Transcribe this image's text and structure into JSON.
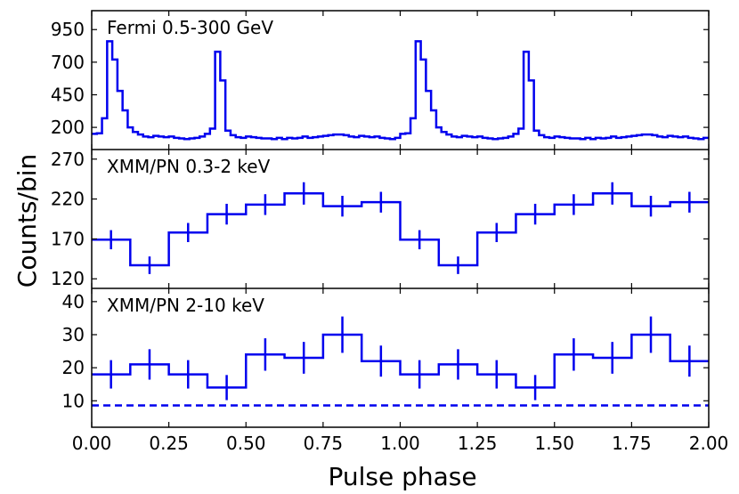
{
  "chart_data": {
    "type": "line",
    "x_axis": {
      "label": "Pulse phase",
      "lim": [
        0.0,
        2.0
      ],
      "ticks": [
        0.0,
        0.25,
        0.5,
        0.75,
        1.0,
        1.25,
        1.5,
        1.75,
        2.0
      ],
      "tick_labels": [
        "0.00",
        "0.25",
        "0.50",
        "0.75",
        "1.00",
        "1.25",
        "1.50",
        "1.75",
        "2.00"
      ]
    },
    "y_label": "Counts/bin",
    "line_color": "#0000ee",
    "panels": [
      {
        "name": "fermi",
        "label": "Fermi 0.5-300 GeV",
        "style": "histogram",
        "ylim": [
          30,
          1095
        ],
        "yticks": [
          200,
          450,
          700,
          950
        ],
        "ytick_labels": [
          "200",
          "450",
          "700",
          "950"
        ],
        "bin_width": 0.0167,
        "values": [
          150,
          155,
          270,
          860,
          720,
          480,
          330,
          200,
          165,
          145,
          130,
          125,
          135,
          130,
          125,
          130,
          120,
          115,
          110,
          115,
          120,
          130,
          150,
          190,
          780,
          560,
          175,
          140,
          125,
          120,
          130,
          125,
          120,
          115,
          115,
          110,
          120,
          110,
          120,
          115,
          120,
          130,
          120,
          125,
          130,
          135,
          140,
          145,
          145,
          140,
          130,
          125,
          135,
          130,
          125,
          130,
          120,
          115,
          110,
          120,
          150,
          155,
          270,
          860,
          720,
          480,
          330,
          200,
          165,
          145,
          130,
          125,
          135,
          130,
          125,
          130,
          120,
          115,
          110,
          115,
          120,
          130,
          150,
          190,
          780,
          560,
          175,
          140,
          125,
          120,
          130,
          125,
          120,
          115,
          115,
          110,
          120,
          110,
          120,
          115,
          120,
          130,
          120,
          125,
          130,
          135,
          140,
          145,
          145,
          140,
          130,
          125,
          135,
          130,
          125,
          130,
          120,
          115,
          110,
          120
        ]
      },
      {
        "name": "xmm-soft",
        "label": "XMM/PN 0.3-2 keV",
        "style": "step-errorbar",
        "ylim": [
          108,
          282
        ],
        "yticks": [
          120,
          170,
          220,
          270
        ],
        "ytick_labels": [
          "120",
          "170",
          "220",
          "270"
        ],
        "bin_width": 0.125,
        "x_centers": [
          0.0625,
          0.1875,
          0.3125,
          0.4375,
          0.5625,
          0.6875,
          0.8125,
          0.9375,
          1.0625,
          1.1875,
          1.3125,
          1.4375,
          1.5625,
          1.6875,
          1.8125,
          1.9375
        ],
        "values": [
          169,
          137,
          178,
          201,
          213,
          227,
          211,
          216,
          169,
          137,
          178,
          201,
          213,
          227,
          211,
          216
        ],
        "errors": [
          12,
          11,
          12,
          13,
          13,
          14,
          13,
          13,
          12,
          11,
          12,
          13,
          13,
          14,
          13,
          13
        ]
      },
      {
        "name": "xmm-hard",
        "label": "XMM/PN 2-10 keV",
        "style": "step-errorbar",
        "ylim": [
          2,
          44
        ],
        "yticks": [
          10,
          20,
          30,
          40
        ],
        "ytick_labels": [
          "10",
          "20",
          "30",
          "40"
        ],
        "bin_width": 0.125,
        "x_centers": [
          0.0625,
          0.1875,
          0.3125,
          0.4375,
          0.5625,
          0.6875,
          0.8125,
          0.9375,
          1.0625,
          1.1875,
          1.3125,
          1.4375,
          1.5625,
          1.6875,
          1.8125,
          1.9375
        ],
        "values": [
          18,
          21,
          18,
          14,
          24,
          23,
          30,
          22,
          18,
          21,
          18,
          14,
          24,
          23,
          30,
          22
        ],
        "errors": [
          4.3,
          4.6,
          4.3,
          3.8,
          4.9,
          4.8,
          5.5,
          4.7,
          4.3,
          4.6,
          4.3,
          3.8,
          4.9,
          4.8,
          5.5,
          4.7
        ],
        "background_level": 8.6
      }
    ]
  }
}
